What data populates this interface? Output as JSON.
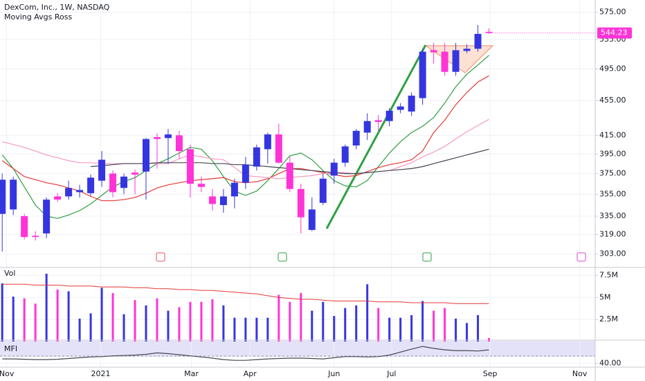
{
  "chart_data": [
    {
      "type": "candlestick",
      "title": "DexCom, Inc., 1W, NASDAQ",
      "subtitle": "Moving Avgs Ross",
      "up_color": "#3535e0",
      "down_color": "#ff33d6",
      "open": [
        337,
        341,
        335,
        318,
        320,
        353,
        353,
        357,
        356,
        368,
        375,
        361,
        376,
        377,
        413,
        412,
        415,
        400,
        365,
        353,
        345,
        353,
        366,
        382,
        400,
        416,
        386,
        360,
        323,
        347,
        373,
        386,
        404,
        418,
        432,
        431,
        444,
        442,
        458,
        520,
        518,
        491,
        519,
        522,
        546
      ],
      "high": [
        375,
        372,
        337,
        322,
        352,
        356,
        368,
        364,
        374,
        398,
        378,
        375,
        379,
        412,
        417,
        422,
        420,
        405,
        372,
        360,
        360,
        370,
        392,
        405,
        418,
        428,
        392,
        365,
        352,
        375,
        390,
        405,
        422,
        440,
        438,
        446,
        452,
        465,
        522,
        530,
        530,
        530,
        528,
        556,
        551
      ],
      "low": [
        305,
        336,
        315,
        314,
        316,
        348,
        350,
        352,
        353,
        362,
        352,
        355,
        355,
        350,
        380,
        385,
        390,
        352,
        357,
        340,
        338,
        342,
        360,
        378,
        385,
        385,
        357,
        320,
        322,
        345,
        365,
        382,
        400,
        410,
        420,
        425,
        440,
        437,
        450,
        502,
        486,
        486,
        516,
        518,
        543
      ],
      "close": [
        369,
        369,
        317,
        317,
        350,
        350,
        361,
        359,
        371,
        389,
        357,
        372,
        374,
        411,
        411,
        416,
        398,
        365,
        362,
        346,
        353,
        366,
        384,
        402,
        416,
        386,
        360,
        334,
        341,
        370,
        386,
        403,
        420,
        431,
        430,
        443,
        448,
        461,
        518,
        517,
        491,
        520,
        522,
        543,
        544.23
      ],
      "series": [
        {
          "color": "#2e9e3e",
          "values": [
            394,
            380,
            362,
            345,
            335,
            333,
            336,
            340,
            346,
            354,
            362,
            367,
            371,
            378,
            385,
            390,
            396,
            402,
            400,
            388,
            372,
            358,
            354,
            358,
            368,
            380,
            393,
            396,
            389,
            378,
            368,
            363,
            362,
            368,
            382,
            396,
            408,
            418,
            425,
            435,
            452,
            472,
            488,
            500,
            513
          ]
        },
        {
          "color": "#e53935",
          "values": [
            388,
            380,
            372,
            369,
            366,
            364,
            361,
            358,
            353,
            349,
            349,
            350,
            352,
            356,
            361,
            364,
            366,
            368,
            369,
            370,
            371,
            367,
            366,
            367,
            370,
            375,
            380,
            380,
            378,
            376,
            374,
            372,
            373,
            377,
            381,
            384,
            386,
            389,
            398,
            418,
            432,
            450,
            465,
            478,
            486
          ]
        },
        {
          "color": "#f59ac4",
          "values": [
            408,
            405,
            402,
            398,
            394,
            391,
            388,
            386,
            386,
            385,
            385,
            385,
            385,
            385,
            385,
            385,
            390,
            394,
            392,
            390,
            389,
            381,
            373,
            372,
            371,
            370,
            371,
            372,
            373,
            375,
            376,
            376,
            375,
            376,
            377,
            378,
            382,
            386,
            392,
            397,
            403,
            411,
            419,
            426,
            433
          ]
        },
        {
          "color": "#434651",
          "values": [
            null,
            null,
            null,
            null,
            null,
            null,
            null,
            null,
            382,
            383,
            384,
            385,
            385,
            385,
            386,
            386,
            386,
            386,
            386,
            385,
            385,
            384,
            384,
            383,
            382,
            381,
            380,
            379,
            378,
            377,
            376,
            375,
            375,
            376,
            377,
            378,
            379,
            380,
            382,
            385,
            388,
            391,
            394,
            397,
            400
          ]
        }
      ],
      "last_price": 544.23,
      "log_scale": true,
      "grid": true,
      "ylim": [
        293,
        594
      ],
      "yticks": [
        {
          "value": 575,
          "label": "575.00"
        },
        {
          "value": 535,
          "label": "535.00"
        },
        {
          "value": 495,
          "label": "495.00"
        },
        {
          "value": 455,
          "label": "455.00"
        },
        {
          "value": 415,
          "label": "415.00"
        },
        {
          "value": 395,
          "label": "395.00"
        },
        {
          "value": 375,
          "label": "375.00"
        },
        {
          "value": 355,
          "label": "355.00"
        },
        {
          "value": 335,
          "label": "335.00"
        },
        {
          "value": 319,
          "label": "319.00"
        },
        {
          "value": 303,
          "label": "303.00"
        }
      ],
      "xlim": [
        -0.2,
        53.6
      ],
      "xticks": [
        {
          "value": 0.4,
          "label": "Nov"
        },
        {
          "value": 8.9,
          "label": "2021"
        },
        {
          "value": 17.1,
          "label": "Mar"
        },
        {
          "value": 22.4,
          "label": "Apr"
        },
        {
          "value": 30.0,
          "label": "Jun"
        },
        {
          "value": 35.2,
          "label": "Jul"
        },
        {
          "value": 44.1,
          "label": "Sep"
        },
        {
          "value": 52.2,
          "label": "Nov"
        }
      ]
    },
    {
      "type": "bar",
      "title": "Vol",
      "values": [
        6.6,
        5.1,
        4.9,
        4.3,
        7.7,
        5.9,
        5.7,
        2.6,
        3.2,
        6.1,
        5.5,
        3.1,
        4.7,
        4.1,
        4.9,
        3.5,
        3.9,
        4.5,
        4.5,
        4.8,
        4.1,
        2.7,
        2.7,
        2.7,
        2.7,
        5.3,
        4.5,
        5.5,
        3.5,
        4.5,
        2.9,
        3.8,
        4.1,
        6.5,
        3.8,
        2.7,
        2.7,
        3.0,
        4.6,
        3.5,
        3.8,
        2.6,
        2.1,
        3.0,
        0.4
      ],
      "series": [
        {
          "color": "#e53935",
          "values": [
            6.5,
            6.5,
            6.5,
            6.4,
            6.4,
            6.4,
            6.3,
            6.3,
            6.3,
            6.2,
            6.2,
            6.2,
            6.1,
            6.1,
            6.0,
            6.0,
            5.9,
            5.9,
            5.8,
            5.8,
            5.7,
            5.6,
            5.5,
            5.4,
            5.2,
            5.0,
            4.9,
            4.8,
            4.8,
            4.7,
            4.6,
            4.6,
            4.6,
            4.6,
            4.5,
            4.5,
            4.5,
            4.4,
            4.4,
            4.4,
            4.4,
            4.3,
            4.3,
            4.3,
            4.3
          ]
        }
      ],
      "ylim": [
        0,
        8.1
      ],
      "yticks": [
        {
          "value": 7.5,
          "label": "7.5M"
        },
        {
          "value": 5,
          "label": "5M"
        },
        {
          "value": 2.5,
          "label": "2.5M"
        }
      ]
    },
    {
      "type": "line",
      "title": "MFI",
      "color": "#434651",
      "values": [
        52,
        52,
        51,
        50,
        50,
        51,
        53,
        55,
        57,
        58,
        60,
        61,
        62,
        64,
        68,
        66,
        63,
        60,
        57,
        54,
        50,
        48,
        48,
        50,
        52,
        53,
        54,
        54,
        53,
        52,
        55,
        58,
        58,
        57,
        58,
        62,
        70,
        78,
        85,
        80,
        76,
        74,
        74,
        73,
        76
      ],
      "ylim": [
        30,
        100
      ],
      "yticks": [
        {
          "value": 40,
          "label": "40.00"
        }
      ]
    }
  ]
}
